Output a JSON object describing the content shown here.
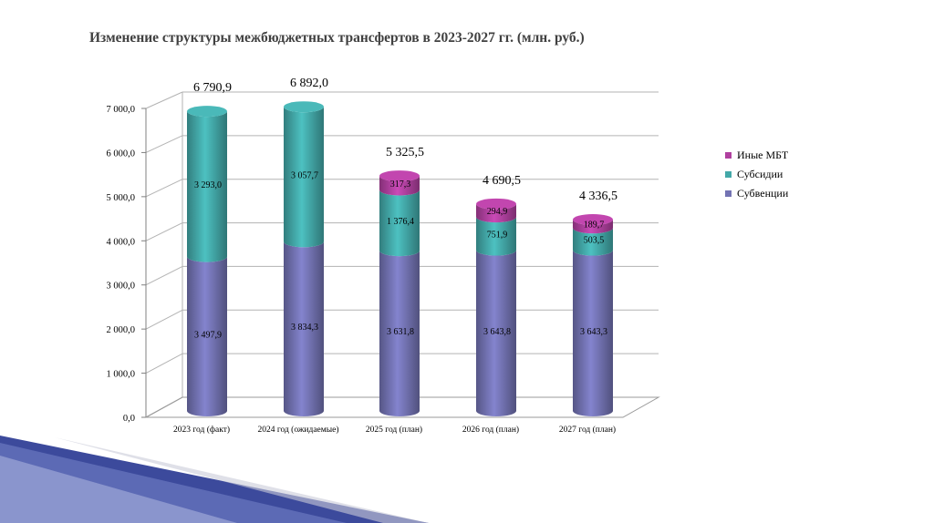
{
  "slide": {
    "title": "Изменение структуры межбюджетных трансфертов в 2023-2027 гг. (млн. руб.)"
  },
  "colors": {
    "subventions": "#7373b3",
    "subsidies": "#43a8a8",
    "other": "#b0409f"
  },
  "chart_data": {
    "type": "bar",
    "stacked": true,
    "categories": [
      "2023 год (факт)",
      "2024 год (ожидаемые)",
      "2025 год (план)",
      "2026 год (план)",
      "2027 год (план)"
    ],
    "series": [
      {
        "name": "Субвенции",
        "values": [
          3497.9,
          3834.3,
          3631.8,
          3643.8,
          3643.3
        ],
        "labels": [
          "3 497,9",
          "3 834,3",
          "3 631,8",
          "3 643,8",
          "3 643,3"
        ]
      },
      {
        "name": "Субсидии",
        "values": [
          3293.0,
          3057.7,
          1376.4,
          751.9,
          503.5
        ],
        "labels": [
          "3 293,0",
          "3 057,7",
          "1 376,4",
          "751,9",
          "503,5"
        ]
      },
      {
        "name": "Иные МБТ",
        "values": [
          0,
          0,
          317.3,
          294.9,
          189.7
        ],
        "labels": [
          "",
          "",
          "317,3",
          "294,9",
          "189,7"
        ]
      }
    ],
    "totals": [
      "6 790,9",
      "6 892,0",
      "5 325,5",
      "4 690,5",
      "4 336,5"
    ],
    "ylim": [
      0,
      7000
    ],
    "yticks": [
      0,
      1000,
      2000,
      3000,
      4000,
      5000,
      6000,
      7000
    ],
    "ytick_labels": [
      "0,0",
      "1 000,0",
      "2 000,0",
      "3 000,0",
      "4 000,0",
      "5 000,0",
      "6 000,0",
      "7 000,0"
    ],
    "grid": true,
    "legend": {
      "position": "right",
      "entries": [
        "Иные МБТ",
        "Субсидии",
        "Субвенции"
      ]
    },
    "title": "",
    "xlabel": "",
    "ylabel": ""
  }
}
